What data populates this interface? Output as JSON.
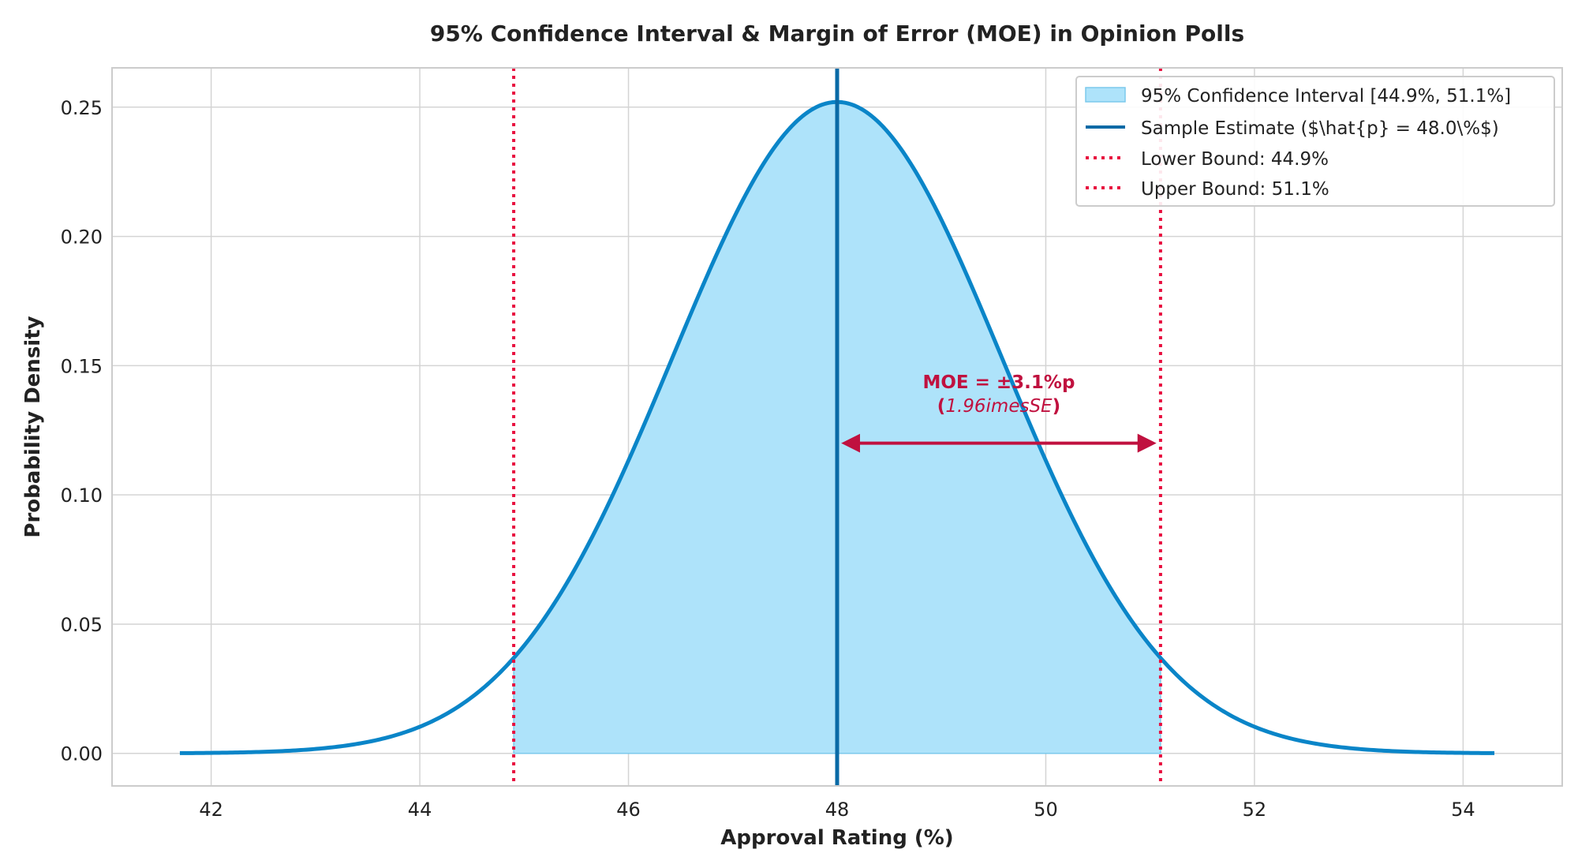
{
  "chart_data": {
    "type": "area",
    "title": "95% Confidence Interval & Margin of Error (MOE) in Opinion Polls",
    "xlabel": "Approval Rating (%)",
    "ylabel": "Probability Density",
    "xlim": [
      41.05,
      54.95
    ],
    "ylim": [
      -0.0126,
      0.2652
    ],
    "x_ticks": [
      42,
      44,
      46,
      48,
      50,
      52,
      54
    ],
    "x_tick_labels": [
      "42",
      "44",
      "46",
      "48",
      "50",
      "52",
      "54"
    ],
    "y_ticks": [
      0.0,
      0.05,
      0.1,
      0.15,
      0.2,
      0.25
    ],
    "y_tick_labels": [
      "0.00",
      "0.05",
      "0.10",
      "0.15",
      "0.20",
      "0.25"
    ],
    "grid": true,
    "legend_position": "top-right",
    "distribution": {
      "estimate": 48.0,
      "ci_lower": 44.9,
      "ci_upper": 51.1,
      "peak_density": 0.252,
      "x_min": 41.7,
      "x_max": 54.3
    },
    "series": [
      {
        "name": "95% Confidence Interval [44.9%, 51.1%]",
        "kind": "fill",
        "color": "#aee3fa"
      },
      {
        "name": "Sample Estimate ($\\hat{p} = 48.0\\%$)",
        "kind": "vline",
        "color": "#0a6aa6"
      },
      {
        "name": "Lower Bound: 44.9%",
        "kind": "dotted-vline",
        "color": "#e8103f"
      },
      {
        "name": "Upper Bound: 51.1%",
        "kind": "dotted-vline",
        "color": "#e8103f"
      }
    ],
    "curve_color": "#0a85c8",
    "annotation": {
      "line1": "MOE = ±3.1%p",
      "line2_open": "(",
      "line2_math": "1.96imesSE",
      "line2_close": ")",
      "arrow_from": 48.0,
      "arrow_to": 51.1,
      "arrow_y": 0.12,
      "text_x": 49.55,
      "text_y": 0.14,
      "color": "#c0113f"
    }
  }
}
